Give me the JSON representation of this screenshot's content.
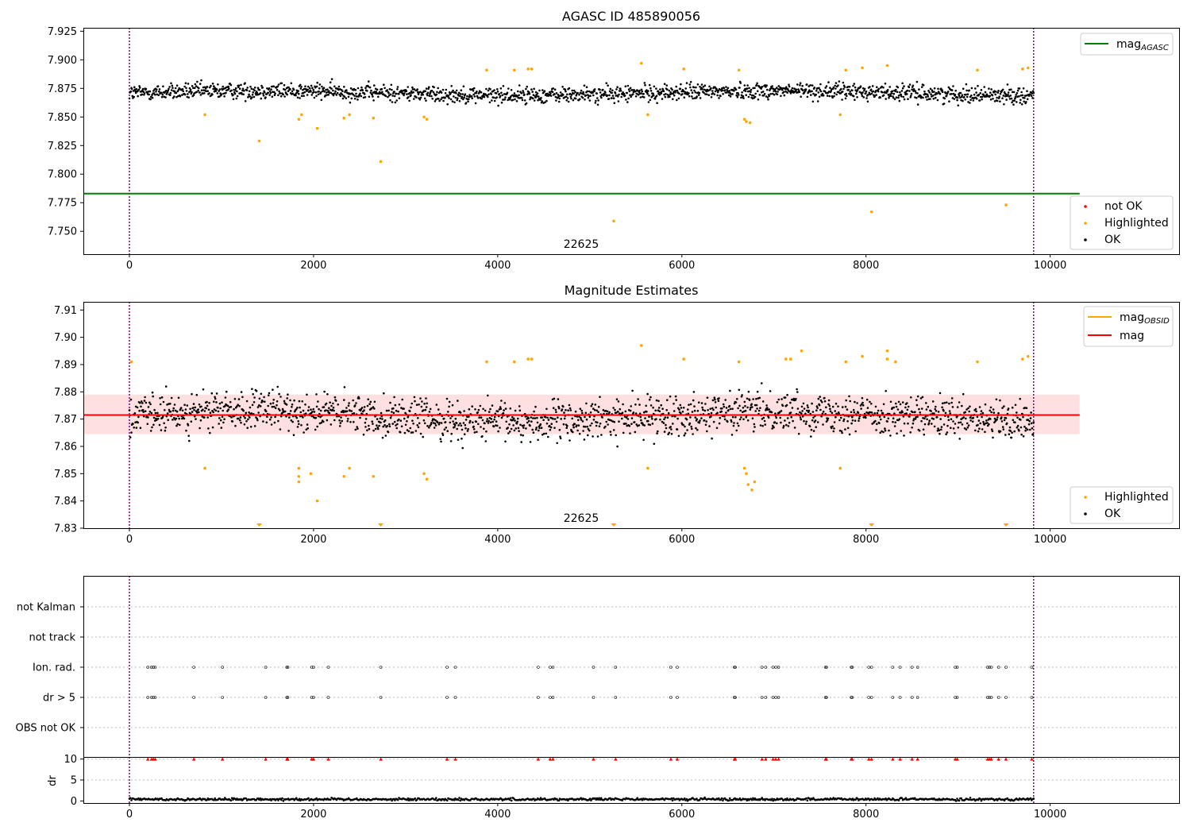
{
  "chart_data": [
    {
      "type": "scatter",
      "title": "AGASC ID 485890056",
      "xlim": [
        -500,
        11400
      ],
      "ylim": [
        7.73,
        7.928
      ],
      "xticks": [
        0,
        2000,
        4000,
        6000,
        8000,
        10000
      ],
      "xtick_labels": [
        "0",
        "2000",
        "4000",
        "6000",
        "8000",
        "10000"
      ],
      "yticks": [
        7.75,
        7.775,
        7.8,
        7.825,
        7.85,
        7.875,
        7.9,
        7.925
      ],
      "ytick_labels": [
        "7.750",
        "7.775",
        "7.800",
        "7.825",
        "7.850",
        "7.875",
        "7.900",
        "7.925"
      ],
      "annotation": "22625",
      "annotation_x": 4900,
      "vlines": [
        0,
        9820
      ],
      "agasc_mag": 7.783,
      "agasc_line_x": [
        -500,
        10320
      ],
      "legend_lines": [
        {
          "label": "mag",
          "sub": "AGASC",
          "color": "#008000"
        }
      ],
      "legend_points": [
        {
          "label": "not OK",
          "color": "#ff0000"
        },
        {
          "label": "Highlighted",
          "color": "#ffa500"
        },
        {
          "label": "OK",
          "color": "#000000"
        }
      ],
      "ok_points": {
        "color": "#000000",
        "x_range": [
          0,
          9820
        ],
        "median": 7.871,
        "spread": 0.007
      },
      "highlighted": [
        [
          820,
          7.852
        ],
        [
          1410,
          7.829
        ],
        [
          1840,
          7.848
        ],
        [
          1870,
          7.852
        ],
        [
          2040,
          7.84
        ],
        [
          2330,
          7.849
        ],
        [
          2390,
          7.852
        ],
        [
          2650,
          7.849
        ],
        [
          2730,
          7.811
        ],
        [
          3200,
          7.85
        ],
        [
          3230,
          7.848
        ],
        [
          3880,
          7.891
        ],
        [
          4180,
          7.891
        ],
        [
          4330,
          7.892
        ],
        [
          4370,
          7.892
        ],
        [
          5260,
          7.759
        ],
        [
          5560,
          7.897
        ],
        [
          5630,
          7.852
        ],
        [
          6020,
          7.892
        ],
        [
          6620,
          7.891
        ],
        [
          6680,
          7.848
        ],
        [
          6700,
          7.846
        ],
        [
          6740,
          7.845
        ],
        [
          7720,
          7.852
        ],
        [
          7780,
          7.891
        ],
        [
          7960,
          7.893
        ],
        [
          8060,
          7.767
        ],
        [
          8230,
          7.895
        ],
        [
          9210,
          7.891
        ],
        [
          9520,
          7.773
        ],
        [
          9700,
          7.892
        ],
        [
          9760,
          7.893
        ]
      ]
    },
    {
      "type": "scatter",
      "title": "Magnitude Estimates",
      "xlim": [
        -500,
        11400
      ],
      "ylim": [
        7.83,
        7.913
      ],
      "xticks": [
        0,
        2000,
        4000,
        6000,
        8000,
        10000
      ],
      "xtick_labels": [
        "0",
        "2000",
        "4000",
        "6000",
        "8000",
        "10000"
      ],
      "yticks": [
        7.83,
        7.84,
        7.85,
        7.86,
        7.87,
        7.88,
        7.89,
        7.9,
        7.91
      ],
      "ytick_labels": [
        "7.83",
        "7.84",
        "7.85",
        "7.86",
        "7.87",
        "7.88",
        "7.89",
        "7.90",
        "7.91"
      ],
      "annotation": "22625",
      "annotation_x": 4900,
      "vlines": [
        0,
        9820
      ],
      "mag_line": 7.8715,
      "mag_band": [
        7.8645,
        7.879
      ],
      "mag_line_x": [
        -500,
        10320
      ],
      "legend_lines": [
        {
          "label": "mag",
          "sub": "OBSID",
          "color": "#ffa500"
        },
        {
          "label": "mag",
          "sub": "",
          "color": "#ff0000"
        }
      ],
      "legend_points": [
        {
          "label": "Highlighted",
          "color": "#ffa500"
        },
        {
          "label": "OK",
          "color": "#000000"
        }
      ],
      "ok_points": {
        "color": "#000000",
        "x_range": [
          0,
          9820
        ],
        "median": 7.871,
        "spread": 0.007
      },
      "highlighted": [
        [
          20,
          7.891
        ],
        [
          820,
          7.852
        ],
        [
          1840,
          7.852
        ],
        [
          1840,
          7.849
        ],
        [
          1840,
          7.847
        ],
        [
          1970,
          7.85
        ],
        [
          2040,
          7.84
        ],
        [
          2330,
          7.849
        ],
        [
          2390,
          7.852
        ],
        [
          2650,
          7.849
        ],
        [
          3200,
          7.85
        ],
        [
          3230,
          7.848
        ],
        [
          3880,
          7.891
        ],
        [
          4180,
          7.891
        ],
        [
          4330,
          7.892
        ],
        [
          4370,
          7.892
        ],
        [
          5560,
          7.897
        ],
        [
          5630,
          7.852
        ],
        [
          6020,
          7.892
        ],
        [
          6620,
          7.891
        ],
        [
          6680,
          7.852
        ],
        [
          6700,
          7.85
        ],
        [
          6720,
          7.846
        ],
        [
          6760,
          7.844
        ],
        [
          6790,
          7.847
        ],
        [
          7130,
          7.892
        ],
        [
          7180,
          7.892
        ],
        [
          7300,
          7.895
        ],
        [
          7720,
          7.852
        ],
        [
          7780,
          7.891
        ],
        [
          7960,
          7.893
        ],
        [
          8230,
          7.895
        ],
        [
          8230,
          7.892
        ],
        [
          8320,
          7.891
        ],
        [
          9210,
          7.891
        ],
        [
          9700,
          7.892
        ],
        [
          9760,
          7.893
        ]
      ],
      "clipped_low": [
        1410,
        2730,
        5260,
        8060,
        9520
      ]
    },
    {
      "type": "scatter",
      "title": "",
      "xlim": [
        -500,
        11400
      ],
      "categories": [
        "not Kalman",
        "not track",
        "Ion. rad.",
        "dr > 5",
        "OBS not OK"
      ],
      "vlines": [
        0,
        9820
      ],
      "flag_x": [
        200,
        240,
        260,
        280,
        700,
        1010,
        1480,
        1710,
        1720,
        1980,
        2000,
        2160,
        2730,
        3450,
        3540,
        4440,
        4570,
        4600,
        5040,
        5280,
        5880,
        5950,
        6570,
        6580,
        6870,
        6910,
        6990,
        7020,
        7050,
        7560,
        7570,
        7840,
        7850,
        8030,
        8060,
        8290,
        8370,
        8500,
        8560,
        8970,
        8990,
        9320,
        9340,
        9360,
        9440,
        9520,
        9800
      ],
      "flagged_rows": [
        "Ion. rad.",
        "dr > 5"
      ]
    },
    {
      "type": "scatter",
      "title": "",
      "ylabel": "dr",
      "xlim": [
        -500,
        11400
      ],
      "ylim": [
        -0.5,
        10.5
      ],
      "xticks": [
        0,
        2000,
        4000,
        6000,
        8000,
        10000
      ],
      "xtick_labels": [
        "0",
        "2000",
        "4000",
        "6000",
        "8000",
        "10000"
      ],
      "yticks": [
        0,
        5,
        10
      ],
      "ytick_labels": [
        "0",
        "5",
        "10"
      ],
      "vlines": [
        0,
        9820
      ],
      "dr_typical": 0.4,
      "dr_capped_value": 10,
      "dr_capped_color": "#ff0000"
    }
  ]
}
